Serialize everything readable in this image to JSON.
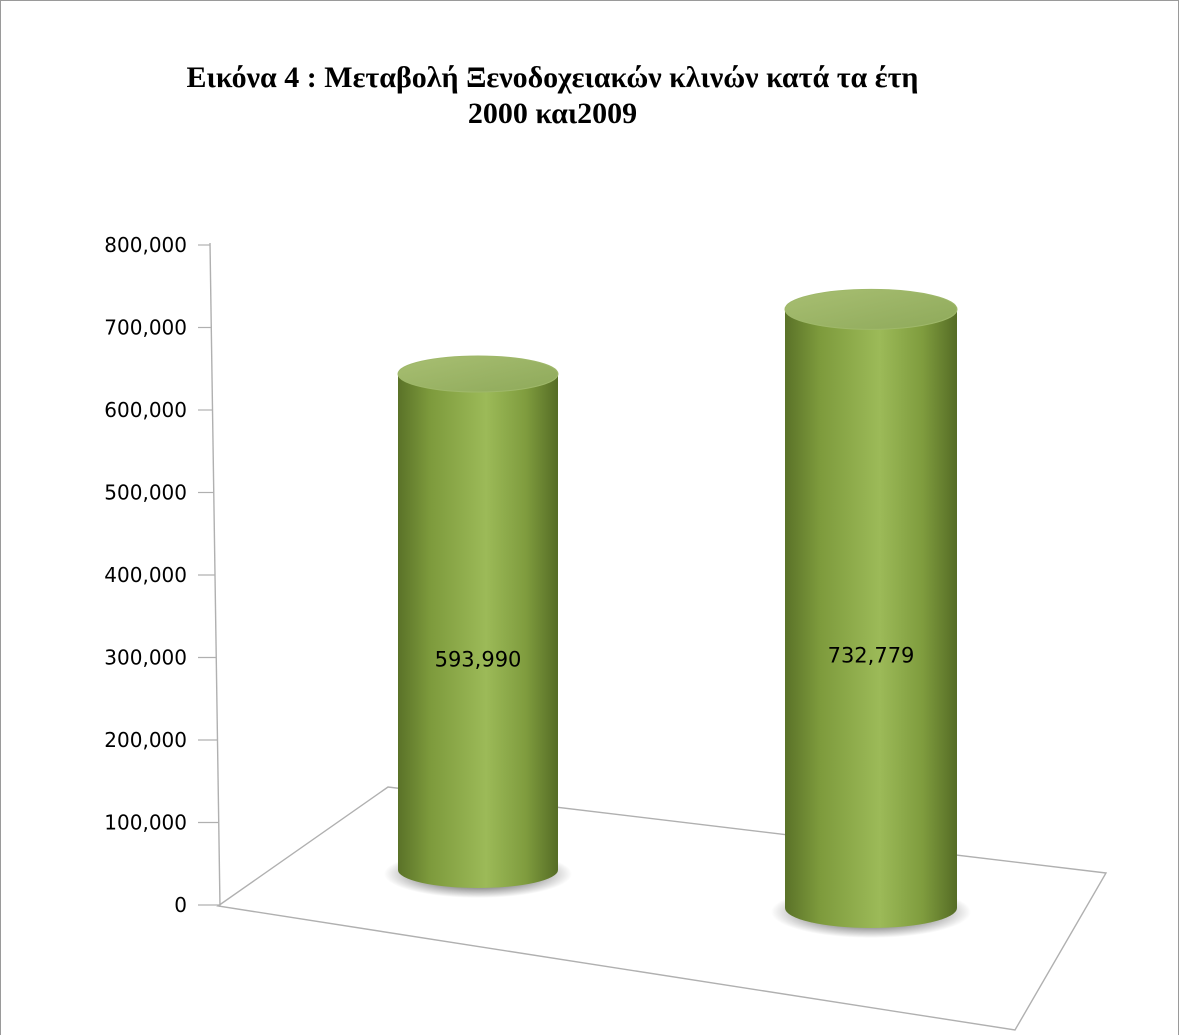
{
  "chart_data": {
    "type": "bar",
    "style": "3d-cylinder",
    "title_lines": [
      "Εικόνα 4 : Μεταβολή Ξενοδοχειακών κλινών κατά τα έτη",
      "2000 και2009"
    ],
    "categories": [
      "",
      ""
    ],
    "values": [
      593990,
      732779
    ],
    "data_labels": [
      "593,990",
      "732,779"
    ],
    "ylim": [
      0,
      800000
    ],
    "y_ticks": [
      0,
      100000,
      200000,
      300000,
      400000,
      500000,
      600000,
      700000,
      800000
    ],
    "y_tick_labels": [
      "0",
      "100,000",
      "200,000",
      "300,000",
      "400,000",
      "500,000",
      "600,000",
      "700,000",
      "800,000"
    ],
    "xlabel": "",
    "ylabel": "",
    "grid": false,
    "legend": "none",
    "colors": {
      "bar": "#8aa84a",
      "bar_dark": "#5a7228",
      "bar_light": "#a6c064",
      "axis": "#b0b0b0"
    }
  }
}
